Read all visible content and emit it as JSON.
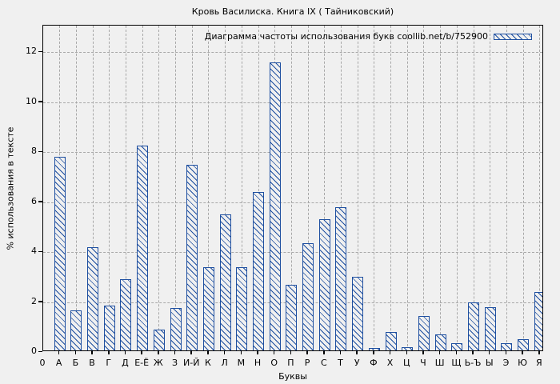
{
  "chart_data": {
    "type": "bar",
    "title": "Кровь Василиска. Книга IX ( Тайниковский)",
    "legend_label": "Диаграмма частоты использования букв coollib.net/b/752900",
    "legend_position": "top-right-inside",
    "xlabel": "Буквы",
    "ylabel": "% использования в тексте",
    "x_origin_label": "0",
    "categories": [
      "А",
      "Б",
      "В",
      "Г",
      "Д",
      "Е-Ё",
      "Ж",
      "З",
      "И-Й",
      "К",
      "Л",
      "М",
      "Н",
      "О",
      "П",
      "Р",
      "С",
      "Т",
      "У",
      "Ф",
      "Х",
      "Ц",
      "Ч",
      "Ш",
      "Щ",
      "Ь-Ъ",
      "Ы",
      "Э",
      "Ю",
      "Я"
    ],
    "values": [
      7.8,
      1.65,
      4.2,
      1.85,
      2.9,
      8.25,
      0.9,
      1.75,
      7.5,
      3.4,
      5.5,
      3.4,
      6.4,
      11.6,
      2.7,
      4.35,
      5.3,
      5.8,
      3.0,
      0.15,
      0.8,
      0.2,
      1.45,
      0.7,
      0.35,
      2.0,
      1.8,
      0.35,
      0.5,
      2.4
    ],
    "yticks": [
      0,
      2,
      4,
      6,
      8,
      10,
      12
    ],
    "ylim": [
      0,
      13.06
    ],
    "grid": true,
    "hatch": "diagonal-backslash",
    "colors": {
      "bar": "#1e4fa0",
      "background": "#f0f0f0",
      "grid": "#a8a8a8",
      "axis": "#000000",
      "text": "#000000"
    }
  }
}
